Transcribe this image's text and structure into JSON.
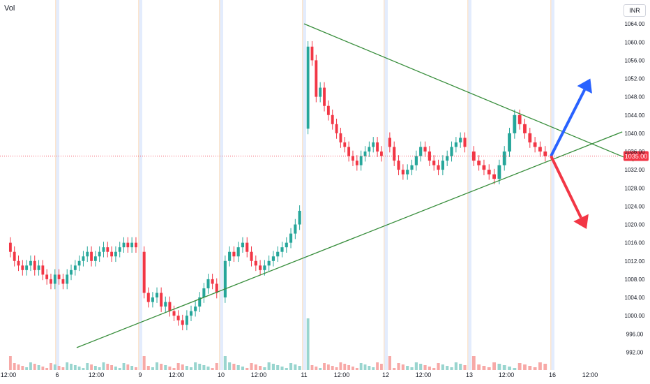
{
  "header": {
    "volume_label": "Vol",
    "currency_label": "INR"
  },
  "colors": {
    "up": "#26a69a",
    "down": "#f23645",
    "vol_up": "#99d5cf",
    "vol_down": "#f7a9a7",
    "trendline": "#388e3c",
    "arrow_up": "#2962ff",
    "arrow_down": "#f23645",
    "session_band": "#e3ecfd",
    "session_edge": "#fbe5cf",
    "price_line": "#f23645",
    "axis_text": "#131722",
    "grid": "#f0f3fa"
  },
  "chart_data": {
    "type": "candlestick",
    "title": "",
    "xlabel": "",
    "ylabel": "",
    "ylim": [
      989,
      1068
    ],
    "grid": false,
    "y_ticks": [
      "1064.00",
      "1060.00",
      "1056.00",
      "1052.00",
      "1048.00",
      "1044.00",
      "1040.00",
      "1036.00",
      "1032.00",
      "1028.00",
      "1024.00",
      "1020.00",
      "1016.00",
      "1012.00",
      "1008.00",
      "1004.00",
      "1000.00",
      "996.00",
      "992.00"
    ],
    "x_ticks": [
      "12:00",
      "6",
      "12:00",
      "9",
      "12:00",
      "10",
      "12:00",
      "11",
      "12:00",
      "12",
      "12:00",
      "13",
      "12:00",
      "16",
      "12:00"
    ],
    "last_price": 1035.0,
    "last_price_label": "1035.00",
    "days": [
      {
        "closes": [
          1014,
          1012,
          1011,
          1010,
          1011,
          1012,
          1010,
          1011,
          1009,
          1008,
          1007,
          1009,
          1008,
          1007,
          1009,
          1010,
          1011,
          1012,
          1013,
          1014,
          1012,
          1013,
          1014,
          1015,
          1014,
          1013,
          1014,
          1015,
          1016,
          1015,
          1016,
          1015
        ]
      },
      {
        "closes": [
          1005,
          1003,
          1004,
          1005,
          1002,
          1003,
          1001,
          1000,
          999,
          998,
          1000,
          1001,
          1002,
          1004,
          1006,
          1008,
          1007,
          1005
        ]
      },
      {
        "closes": [
          1012,
          1014,
          1013,
          1015,
          1016,
          1014,
          1012,
          1011,
          1010,
          1011,
          1012,
          1013,
          1014,
          1015,
          1016,
          1018,
          1020,
          1023
        ]
      },
      {
        "closes": [
          1059,
          1056,
          1048,
          1050,
          1046,
          1044,
          1042,
          1040,
          1038,
          1037,
          1035,
          1034,
          1033,
          1035,
          1036,
          1037,
          1038,
          1036,
          1035
        ]
      },
      {
        "closes": [
          1037,
          1034,
          1032,
          1031,
          1032,
          1033,
          1035,
          1037,
          1036,
          1034,
          1033,
          1032,
          1034,
          1035,
          1037,
          1038,
          1039,
          1037
        ]
      },
      {
        "closes": [
          1034,
          1033,
          1032,
          1031,
          1030,
          1033,
          1036,
          1040,
          1044,
          1042,
          1040,
          1038,
          1037,
          1036,
          1035
        ]
      }
    ],
    "trendlines": [
      {
        "name": "upper",
        "from": {
          "pos": 7.0,
          "price": 1064.0
        },
        "to": {
          "pos": 14.6,
          "price": 1034.5
        }
      },
      {
        "name": "lower",
        "from": {
          "pos": 1.5,
          "price": 993.0
        },
        "to": {
          "pos": 14.3,
          "price": 1040.0
        }
      }
    ],
    "arrows": [
      {
        "name": "bullish",
        "color_key": "arrow_up",
        "from": {
          "pos": 13.4,
          "price": 1035.0
        },
        "to": {
          "pos": 14.1,
          "price": 1052.0
        }
      },
      {
        "name": "bearish",
        "color_key": "arrow_down",
        "from": {
          "pos": 13.4,
          "price": 1035.0
        },
        "to": {
          "pos": 14.0,
          "price": 1019.0
        }
      }
    ]
  }
}
